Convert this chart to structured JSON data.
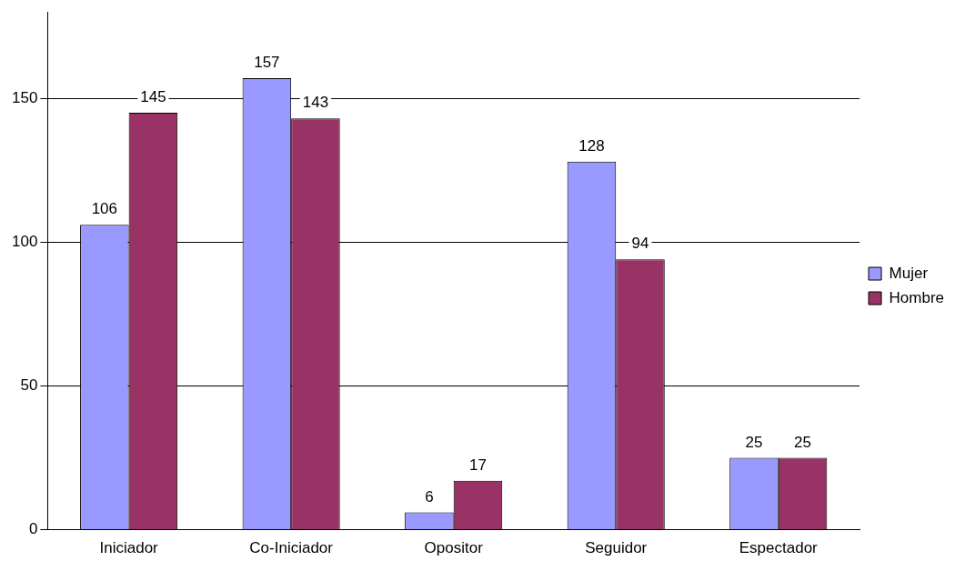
{
  "chart_data": {
    "type": "bar",
    "categories": [
      "Iniciador",
      "Co-Iniciador",
      "Opositor",
      "Seguidor",
      "Espectador"
    ],
    "series": [
      {
        "name": "Mujer",
        "color": "#9999ff",
        "values": [
          106,
          157,
          6,
          128,
          25
        ]
      },
      {
        "name": "Hombre",
        "color": "#993366",
        "values": [
          145,
          143,
          17,
          94,
          25
        ]
      }
    ],
    "ylim": [
      0,
      180
    ],
    "yticks": [
      0,
      50,
      100,
      150
    ],
    "grid": "y",
    "legend": "right",
    "data_labels": true
  }
}
